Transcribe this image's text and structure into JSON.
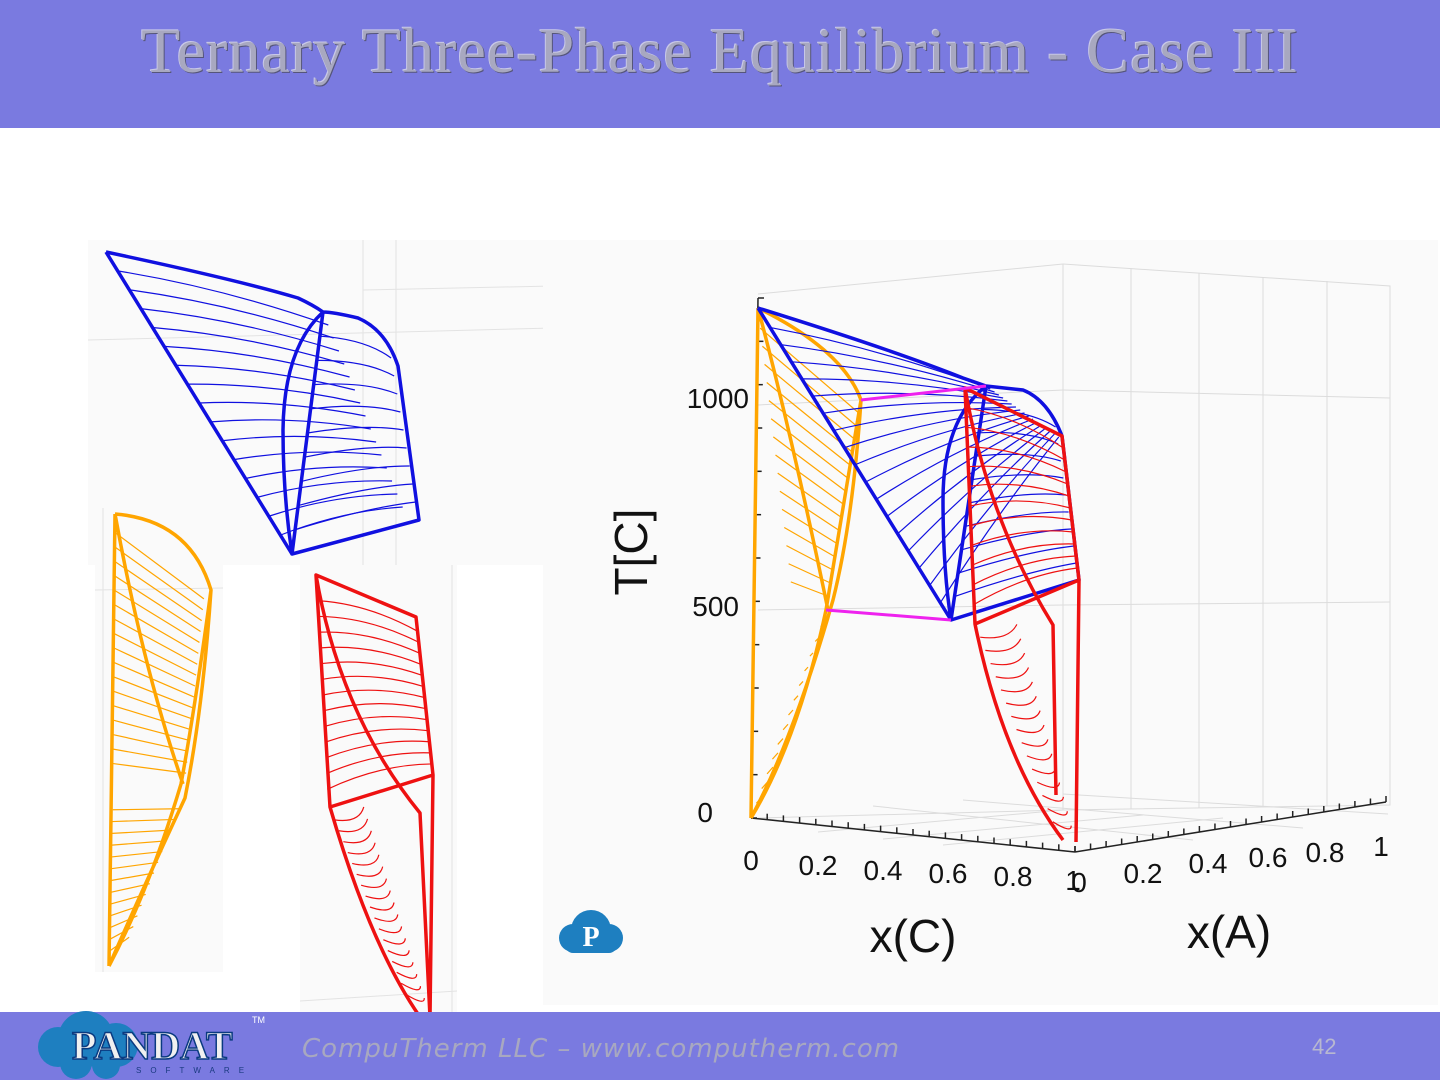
{
  "slide": {
    "title": "Ternary Three-Phase Equilibrium - Case III",
    "footer": "CompuTherm LLC – www.computherm.com",
    "page_number": "42"
  },
  "logos": {
    "pandat_wordmark": "PANDAT",
    "pandat_tm": "TM",
    "pandat_tagline": "SOFTWARE",
    "small_logo_letter": "P"
  },
  "colors": {
    "title_bar": "#7a7ae0",
    "blue_phase": "#1010e0",
    "orange_phase": "#ffa500",
    "red_phase": "#ee1111",
    "magenta_line": "#ee22ee"
  },
  "chart_data": {
    "type": "3d-phase-diagram",
    "z_axis": {
      "label": "T[C]",
      "ticks": [
        "0",
        "500",
        "1000"
      ]
    },
    "x_axis": {
      "label": "x(C)",
      "ticks": [
        "0",
        "0.2",
        "0.4",
        "0.6",
        "0.8",
        "1"
      ]
    },
    "y_axis": {
      "label": "x(A)",
      "ticks": [
        "0",
        "0.2",
        "0.4",
        "0.6",
        "0.8",
        "1"
      ]
    },
    "grid": true
  }
}
